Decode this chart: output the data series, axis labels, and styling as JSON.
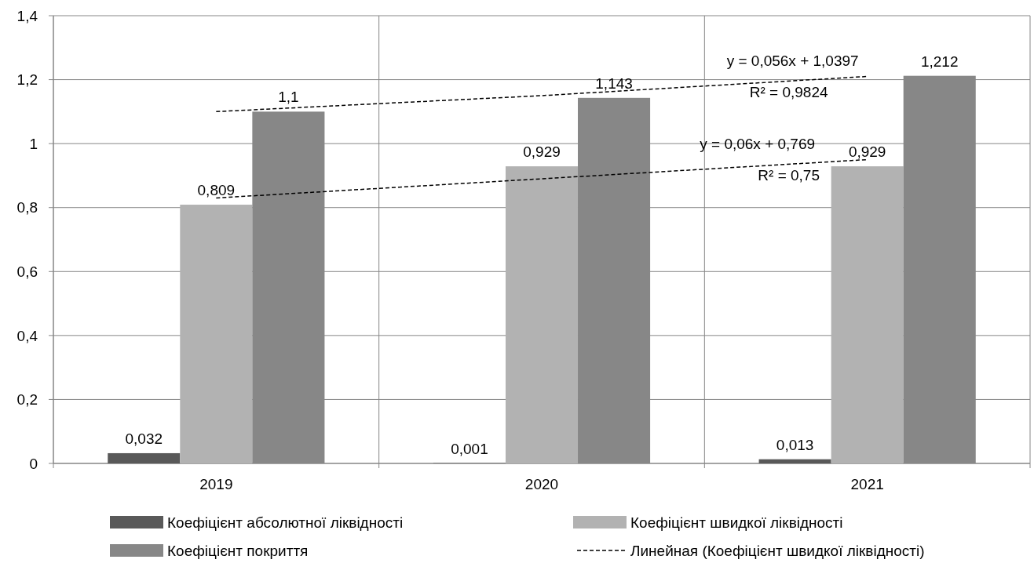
{
  "chart_data": {
    "type": "bar",
    "categories": [
      "2019",
      "2020",
      "2021"
    ],
    "series": [
      {
        "name": "Коефіцієнт абсолютної ліквідності",
        "color": "#595959",
        "values": [
          0.032,
          0.001,
          0.013
        ],
        "value_labels": [
          "0,032",
          "0,001",
          "0,013"
        ]
      },
      {
        "name": "Коефіцієнт швидкої ліквідності",
        "color": "#b2b2b2",
        "values": [
          0.809,
          0.929,
          0.929
        ],
        "value_labels": [
          "0,809",
          "0,929",
          "0,929"
        ]
      },
      {
        "name": "Коефіцієнт покриття",
        "color": "#878787",
        "values": [
          1.1,
          1.143,
          1.212
        ],
        "value_labels": [
          "1,1",
          "1,143",
          "1,212"
        ]
      },
      {
        "type": "line",
        "color": "#000000",
        "line_style": "dashed",
        "values": [
          1.1,
          1.15,
          1.21
        ]
      },
      {
        "type": "line",
        "name": "Линейная (Коефіцієнт швидкої ліквідності)",
        "color": "#000000",
        "line_style": "dashed",
        "values": [
          0.83,
          0.89,
          0.95
        ]
      }
    ],
    "ylim": [
      0,
      1.4
    ],
    "yticks": [
      0,
      {
        "value": 0.2,
        "label": "0,2"
      },
      {
        "value": 0.4,
        "label": "0,4"
      },
      {
        "value": 0.6,
        "label": "0,6"
      },
      {
        "value": 0.8,
        "label": "0,8"
      },
      1,
      {
        "value": 1.2,
        "label": "1,2"
      },
      {
        "value": 1.4,
        "label": "1,4"
      }
    ],
    "annotations": [
      "y = 0,056x + 1,0397",
      "R² = 0,9824",
      "y = 0,06x + 0,769",
      "R² = 0,75"
    ],
    "grid": true,
    "legend": "bottom"
  }
}
